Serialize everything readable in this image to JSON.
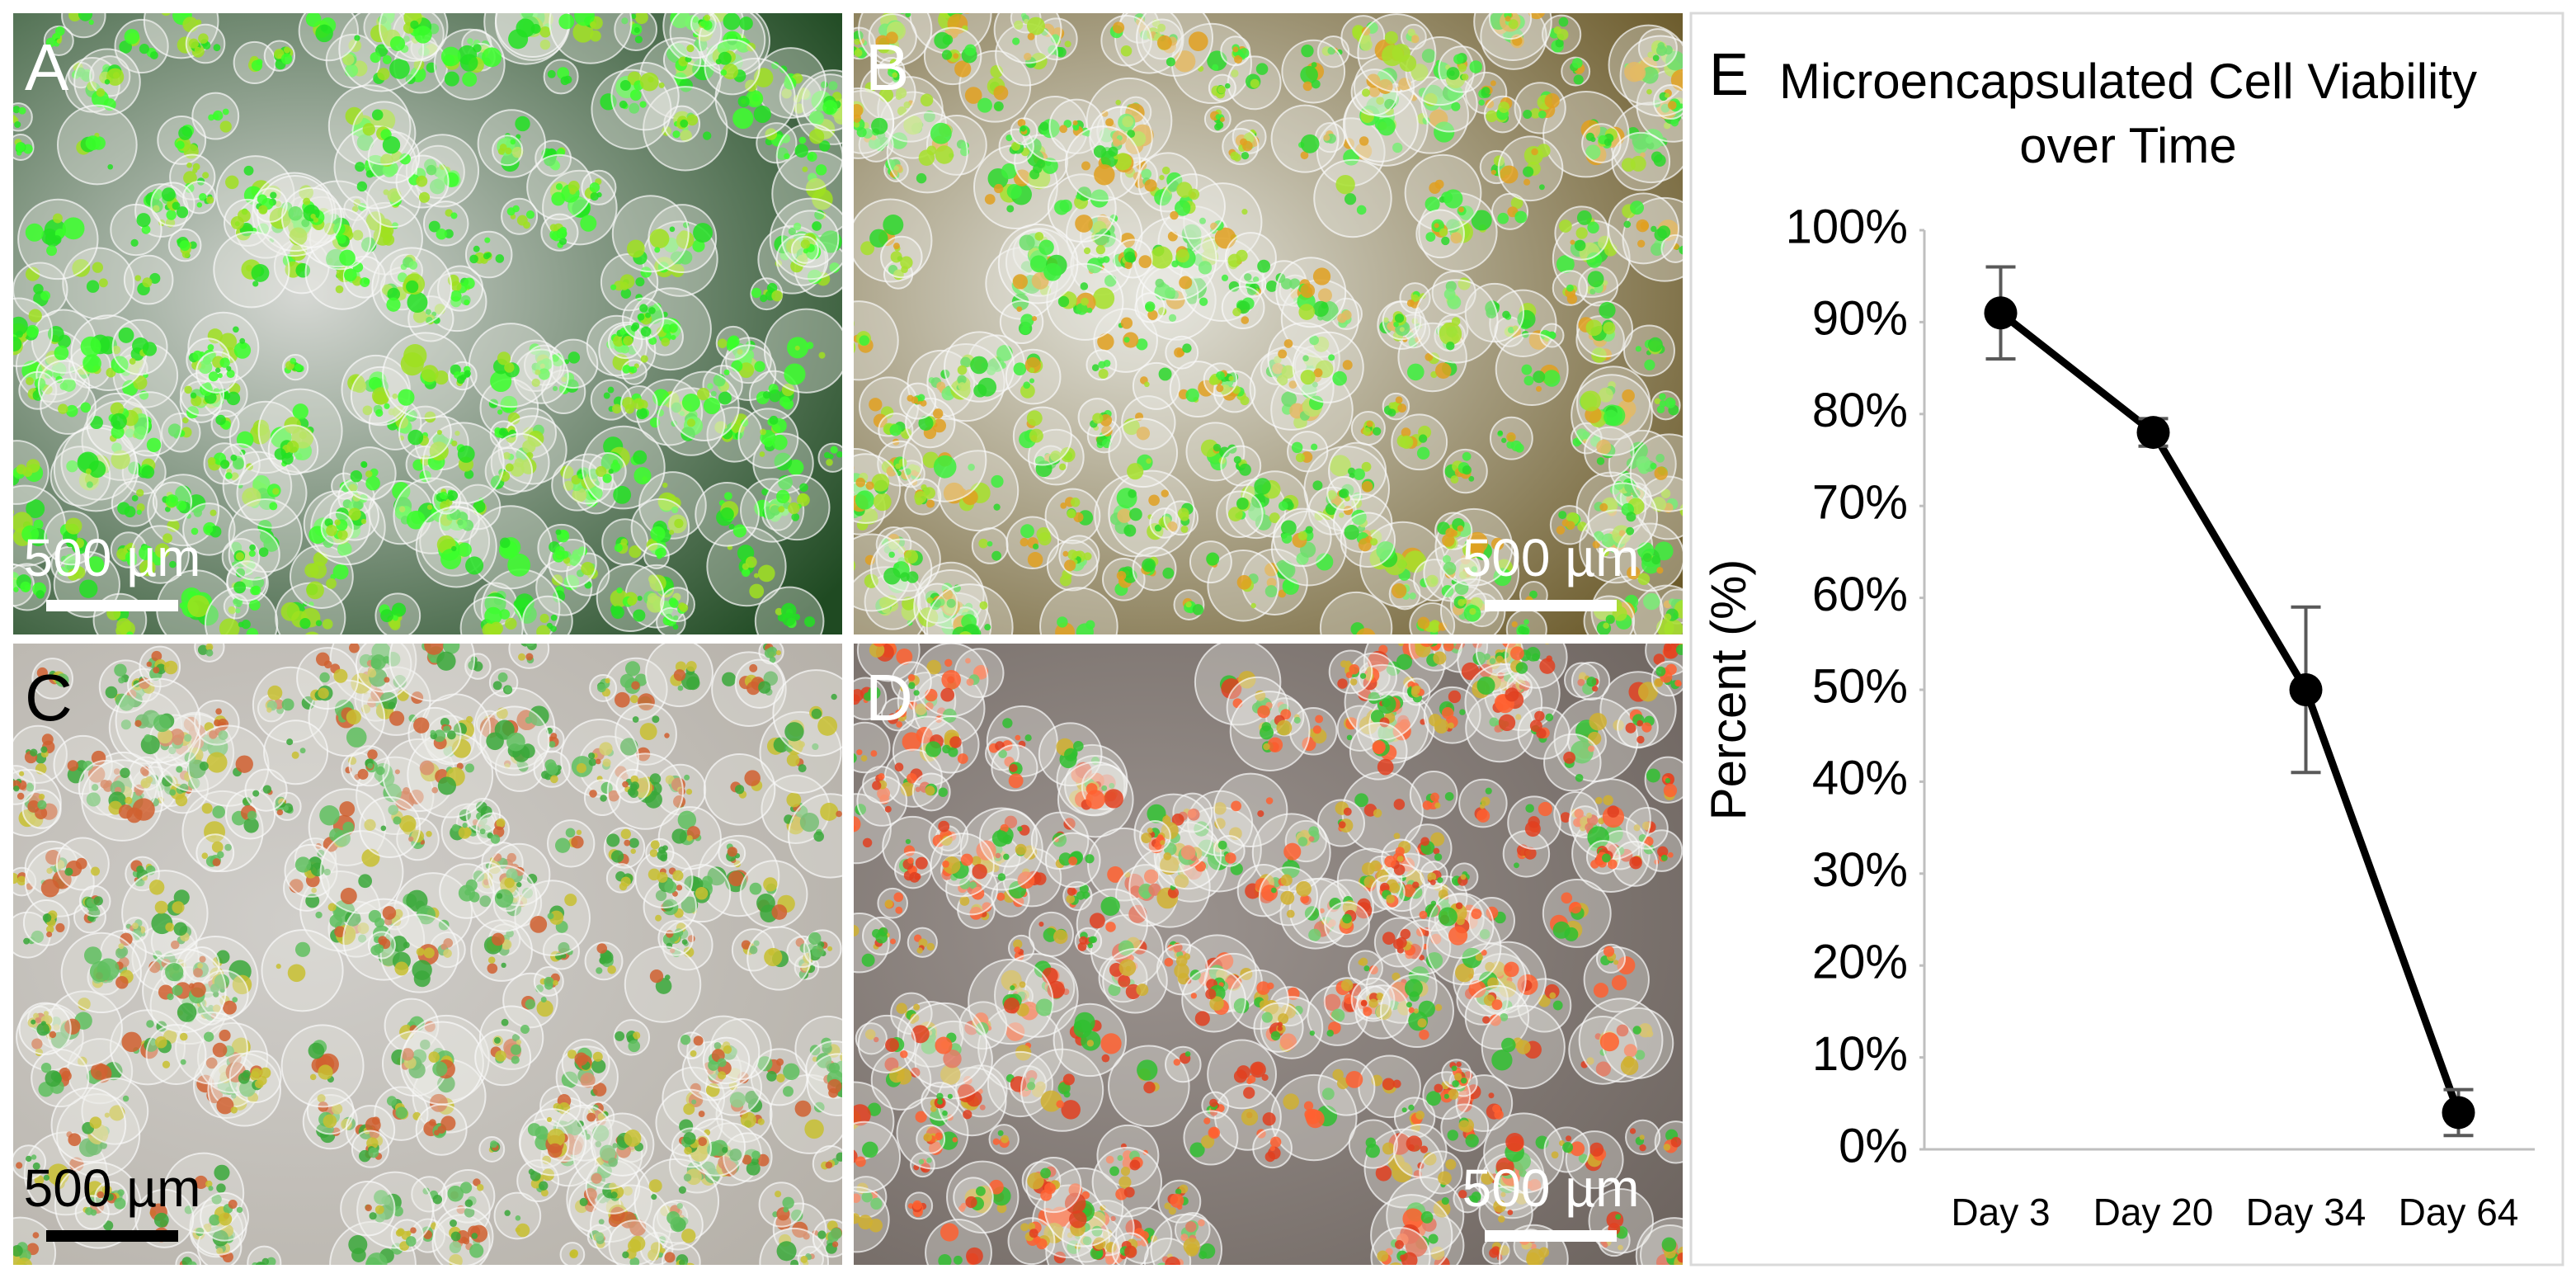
{
  "panels": [
    {
      "label": "A",
      "scale_bar": "500 µm"
    },
    {
      "label": "B",
      "scale_bar": "500 µm"
    },
    {
      "label": "C",
      "scale_bar": "500 µm"
    },
    {
      "label": "D",
      "scale_bar": "500 µm"
    }
  ],
  "chart_data": {
    "type": "line",
    "panel_label": "E",
    "title": "Microencapsulated Cell Viability over Time",
    "y_label": "Percent (%)",
    "categories": [
      "Day 3",
      "Day 20",
      "Day 34",
      "Day 64"
    ],
    "values": [
      91,
      78,
      50,
      4
    ],
    "errors": [
      5,
      1.5,
      9,
      2.5
    ],
    "color": "#000000",
    "ylim": [
      0,
      100
    ],
    "yticks": [
      {
        "value": 0,
        "label": "0%"
      },
      {
        "value": 10,
        "label": "10%"
      },
      {
        "value": 20,
        "label": "20%"
      },
      {
        "value": 30,
        "label": "30%"
      },
      {
        "value": 40,
        "label": "40%"
      },
      {
        "value": 50,
        "label": "50%"
      },
      {
        "value": 60,
        "label": "60%"
      },
      {
        "value": 70,
        "label": "70%"
      },
      {
        "value": 80,
        "label": "80%"
      },
      {
        "value": 90,
        "label": "90%"
      },
      {
        "value": 100,
        "label": "100%"
      }
    ],
    "grid": false
  }
}
